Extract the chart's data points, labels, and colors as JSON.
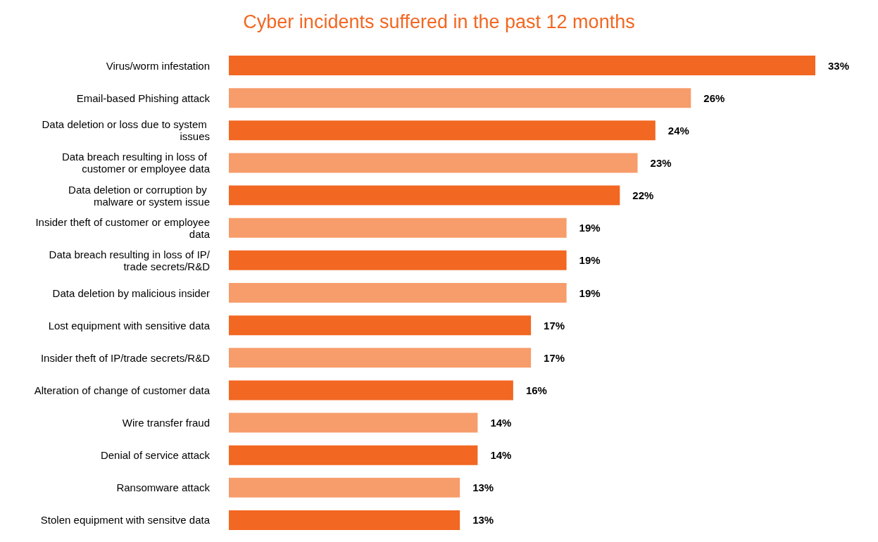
{
  "chart_data": {
    "type": "bar",
    "orientation": "horizontal",
    "title": "Cyber incidents suffered in the past 12 months",
    "categories": [
      "Virus/worm infestation",
      "Email-based Phishing attack",
      "Data deletion or loss due to system issues",
      "Data breach resulting in loss of customer or employee data",
      "Data deletion or corruption by malware or system issue",
      "Insider theft of customer or employee data",
      "Data breach resulting in loss of IP/trade secrets/R&D",
      "Data deletion by malicious insider",
      "Lost equipment with sensitive data",
      "Insider theft of IP/trade secrets/R&D",
      "Alteration of change of customer data",
      "Wire transfer fraud",
      "Denial of service attack",
      "Ransomware attack",
      "Stolen equipment with sensitve data"
    ],
    "values": [
      33,
      26,
      24,
      23,
      22,
      19,
      19,
      19,
      17,
      17,
      16,
      14,
      14,
      13,
      13
    ],
    "value_labels": [
      "33%",
      "26%",
      "24%",
      "23%",
      "22%",
      "19%",
      "19%",
      "19%",
      "17%",
      "17%",
      "16%",
      "14%",
      "14%",
      "13%",
      "13%"
    ],
    "colors": [
      "#f26722",
      "#f79c6b",
      "#f26722",
      "#f79c6b",
      "#f26722",
      "#f79c6b",
      "#f26722",
      "#f79c6b",
      "#f26722",
      "#f79c6b",
      "#f26722",
      "#f79c6b",
      "#f26722",
      "#f79c6b",
      "#f26722"
    ],
    "tick_labels": "y"
  }
}
